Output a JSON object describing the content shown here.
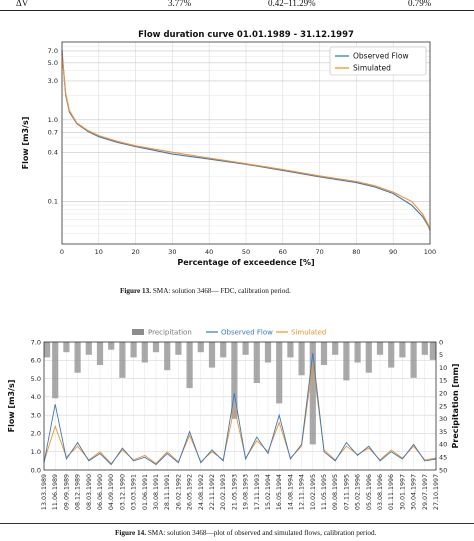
{
  "table_row": {
    "label": "ΔV",
    "c1": "3.77%",
    "c2": "0.42–11.29%",
    "c3": "0.79%"
  },
  "figure13": {
    "caption_bold": "Figure 13.",
    "caption_text": " SMA: solution 3468— FDC, calibration period."
  },
  "figure14": {
    "caption_bold": "Figure 14.",
    "caption_text": " SMA: solution 3468—plot of observed and simulated flows, calibration period."
  },
  "colors": {
    "observed": "#3b78c0",
    "simulated": "#f2932a",
    "precip": "#8c8c8c"
  },
  "chart_data": [
    {
      "type": "line",
      "title": "Flow duration curve 01.01.1989 - 31.12.1997",
      "xlabel": "Percentage of exceedence [%]",
      "ylabel": "Flow [m3/s]",
      "xlim": [
        0,
        100
      ],
      "ylim": [
        0.03,
        9.0
      ],
      "yscale": "log",
      "xticks": [
        0,
        10,
        20,
        30,
        40,
        50,
        60,
        70,
        80,
        90,
        100
      ],
      "yticks": [
        0.1,
        0.4,
        0.7,
        1.0,
        3.0,
        5.0,
        7.0
      ],
      "ytick_labels": [
        "0.1",
        "0.4",
        "0.7",
        "1.0",
        "3.0",
        "5.0",
        "7.0"
      ],
      "grid": true,
      "legend": "top-right",
      "series": [
        {
          "name": "Observed Flow",
          "x": [
            0,
            0.3,
            1,
            2,
            4,
            7,
            10,
            15,
            20,
            30,
            40,
            50,
            60,
            70,
            80,
            85,
            90,
            95,
            98,
            99.5,
            100
          ],
          "y": [
            7.2,
            4.8,
            2.0,
            1.25,
            0.9,
            0.72,
            0.62,
            0.53,
            0.47,
            0.38,
            0.33,
            0.285,
            0.24,
            0.2,
            0.17,
            0.15,
            0.125,
            0.09,
            0.065,
            0.05,
            0.044
          ]
        },
        {
          "name": "Simulated",
          "x": [
            0,
            0.3,
            1,
            2,
            4,
            7,
            10,
            15,
            20,
            30,
            40,
            50,
            60,
            70,
            80,
            85,
            90,
            95,
            98,
            99.5,
            100
          ],
          "y": [
            7.0,
            4.6,
            2.1,
            1.3,
            0.92,
            0.74,
            0.64,
            0.545,
            0.48,
            0.4,
            0.34,
            0.29,
            0.245,
            0.205,
            0.175,
            0.155,
            0.13,
            0.1,
            0.07,
            0.052,
            0.045
          ]
        }
      ]
    },
    {
      "type": "line",
      "title": "",
      "xlabel": "",
      "ylabel": "Flow [m3/s]",
      "y2label": "Precipitation [mm]",
      "ylim": [
        0,
        7.0
      ],
      "y2lim": [
        0,
        50
      ],
      "y2_inverted": true,
      "yticks": [
        0.0,
        1.0,
        2.0,
        3.0,
        4.0,
        5.0,
        6.0,
        7.0
      ],
      "ytick_labels": [
        "0.0",
        "1.0",
        "2.0",
        "3.0",
        "4.0",
        "5.0",
        "6.0",
        "7.0"
      ],
      "y2ticks": [
        0,
        5,
        10,
        15,
        20,
        25,
        30,
        35,
        40,
        45,
        50
      ],
      "grid": true,
      "legend": "top",
      "categories": [
        "13.03.1989",
        "11.06.1989",
        "09.09.1989",
        "08.12.1989",
        "08.03.1990",
        "06.06.1990",
        "04.09.1990",
        "03.12.1990",
        "03.03.1991",
        "01.06.1991",
        "30.08.1991",
        "28.11.1991",
        "26.02.1992",
        "26.05.1992",
        "24.08.1992",
        "22.11.1992",
        "20.02.1993",
        "21.05.1993",
        "19.08.1993",
        "17.11.1993",
        "15.02.1994",
        "16.05.1994",
        "14.08.1994",
        "12.11.1994",
        "10.02.1995",
        "11.05.1995",
        "09.08.1995",
        "07.11.1995",
        "05.02.1996",
        "05.05.1996",
        "03.08.1996",
        "01.11.1996",
        "30.01.1997",
        "30.04.1997",
        "29.07.1997",
        "27.10.1997"
      ],
      "series": [
        {
          "name": "Observed Flow",
          "values": [
            0.4,
            3.6,
            0.6,
            1.5,
            0.5,
            0.9,
            0.3,
            1.2,
            0.5,
            0.7,
            0.3,
            0.9,
            0.4,
            2.1,
            0.4,
            1.1,
            0.5,
            4.2,
            0.6,
            1.8,
            0.9,
            3.0,
            0.6,
            1.4,
            6.4,
            1.0,
            0.5,
            1.5,
            0.8,
            1.3,
            0.5,
            1.0,
            0.6,
            1.4,
            0.5,
            0.6
          ]
        },
        {
          "name": "Simulated",
          "values": [
            0.45,
            2.4,
            0.7,
            1.3,
            0.55,
            1.0,
            0.35,
            1.1,
            0.55,
            0.8,
            0.35,
            1.0,
            0.45,
            1.9,
            0.45,
            1.0,
            0.55,
            3.4,
            0.65,
            1.6,
            1.0,
            2.6,
            0.65,
            1.3,
            5.8,
            1.1,
            0.55,
            1.3,
            0.85,
            1.2,
            0.55,
            1.1,
            0.65,
            1.3,
            0.55,
            0.65
          ]
        },
        {
          "name": "Precipitation",
          "values": [
            6,
            22,
            4,
            12,
            5,
            9,
            3,
            14,
            6,
            8,
            4,
            11,
            5,
            18,
            4,
            10,
            6,
            30,
            5,
            16,
            8,
            24,
            6,
            13,
            40,
            9,
            5,
            15,
            8,
            12,
            5,
            10,
            6,
            14,
            5,
            7
          ]
        }
      ]
    }
  ]
}
